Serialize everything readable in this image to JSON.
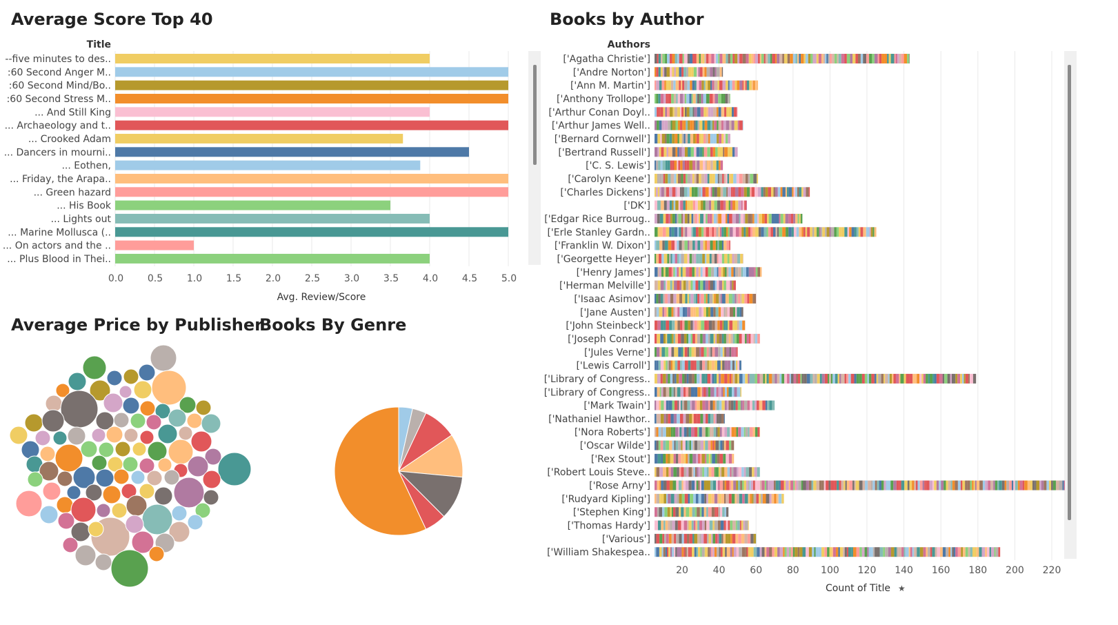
{
  "charts": {
    "score_title": "Average Score Top 40",
    "author_title": "Books by Author",
    "publisher_title": "Average Price by Publisher",
    "genre_title": "Books By Genre"
  },
  "colors": {
    "palette": [
      "#f0cd63",
      "#a0cbe8",
      "#b6992d",
      "#f28e2b",
      "#fabfd2",
      "#e15759",
      "#4e79a7",
      "#ffbe7d",
      "#ff9d9a",
      "#8cd17d",
      "#86bcb6",
      "#499894",
      "#79706e",
      "#bab0ac",
      "#d37295",
      "#b07aa1",
      "#d4a6c8",
      "#59a14f",
      "#9d7660",
      "#d7b5a6",
      "#f1ce63",
      "#e15759"
    ],
    "grid": "#e9e9e9",
    "axis_text": "#555555"
  },
  "chart_data": [
    {
      "type": "bar",
      "orientation": "horizontal",
      "title": "Average Score Top 40",
      "row_header": "Title",
      "xlabel": "Avg. Review/Score",
      "xlim": [
        0,
        5.0
      ],
      "xticks": [
        "0.0",
        "0.5",
        "1.0",
        "1.5",
        "2.0",
        "2.5",
        "3.0",
        "3.5",
        "4.0",
        "4.5",
        "5.0"
      ],
      "categories": [
        "--five minutes to des..",
        ":60 Second Anger M..",
        ":60 Second Mind/Bo..",
        ":60 Second Stress M..",
        "... And Still King",
        "... Archaeology and t..",
        "... Crooked Adam",
        "... Dancers in mourni..",
        "... Eothen,",
        "... Friday, the Arapa..",
        "... Green hazard",
        "... His Book",
        "... Lights out",
        "... Marine Mollusca (..",
        "... On actors and the ..",
        "... Plus Blood in Thei.."
      ],
      "values": [
        4.0,
        5.0,
        5.0,
        5.0,
        4.0,
        5.0,
        3.66,
        4.5,
        3.88,
        5.0,
        5.0,
        3.5,
        4.0,
        5.0,
        1.0,
        4.0
      ],
      "colors": [
        "#f0cd63",
        "#a0cbe8",
        "#b6992d",
        "#f28e2b",
        "#fabfd2",
        "#e15759",
        "#f0cd63",
        "#4e79a7",
        "#a0cbe8",
        "#ffbe7d",
        "#ff9d9a",
        "#8cd17d",
        "#86bcb6",
        "#499894",
        "#ff9d9a",
        "#8cd17d"
      ]
    },
    {
      "type": "bar",
      "orientation": "horizontal",
      "stacked": true,
      "title": "Books by Author",
      "row_header": "Authors",
      "xlabel": "Count of Title",
      "xlim": [
        0,
        225
      ],
      "xticks": [
        "20",
        "40",
        "60",
        "80",
        "100",
        "120",
        "140",
        "160",
        "180",
        "200",
        "220"
      ],
      "categories": [
        "['Agatha Christie']",
        "['Andre Norton']",
        "['Ann M. Martin']",
        "['Anthony Trollope']",
        "['Arthur Conan Doyl..",
        "['Arthur James Well..",
        "['Bernard Cornwell']",
        "['Bertrand Russell']",
        "['C. S. Lewis']",
        "['Carolyn Keene']",
        "['Charles Dickens']",
        "['DK']",
        "['Edgar Rice Burroug..",
        "['Erle Stanley Gardn..",
        "['Franklin W. Dixon']",
        "['Georgette Heyer']",
        "['Henry James']",
        "['Herman Melville']",
        "['Isaac Asimov']",
        "['Jane Austen']",
        "['John Steinbeck']",
        "['Joseph Conrad']",
        "['Jules Verne']",
        "['Lewis Carroll']",
        "['Library of Congress..",
        "['Library of Congress..",
        "['Mark Twain']",
        "['Nathaniel Hawthor..",
        "['Nora Roberts']",
        "['Oscar Wilde']",
        "['Rex Stout']",
        "['Robert Louis Steve..",
        "['Rose Arny']",
        "['Rudyard Kipling']",
        "['Stephen King']",
        "['Thomas Hardy']",
        "['Various']",
        "['William Shakespea.."
      ],
      "values": [
        138,
        37,
        56,
        41,
        45,
        48,
        41,
        45,
        37,
        56,
        84,
        50,
        80,
        120,
        41,
        48,
        58,
        44,
        55,
        48,
        49,
        57,
        45,
        47,
        174,
        47,
        65,
        38,
        57,
        43,
        43,
        57,
        222,
        70,
        40,
        51,
        55,
        187
      ]
    },
    {
      "type": "bubble",
      "title": "Average Price by Publisher",
      "note": "packed bubbles, one per publisher; size = average price; unlabeled"
    },
    {
      "type": "pie",
      "title": "Books By Genre",
      "slices": [
        {
          "value": 3.5,
          "color": "#a0cbe8"
        },
        {
          "value": 3.5,
          "color": "#bab0ac"
        },
        {
          "value": 8.5,
          "color": "#e15759"
        },
        {
          "value": 11.0,
          "color": "#ffbe7d"
        },
        {
          "value": 11.0,
          "color": "#79706e"
        },
        {
          "value": 5.5,
          "color": "#e15759"
        },
        {
          "value": 57.0,
          "color": "#f28e2b"
        }
      ]
    }
  ]
}
